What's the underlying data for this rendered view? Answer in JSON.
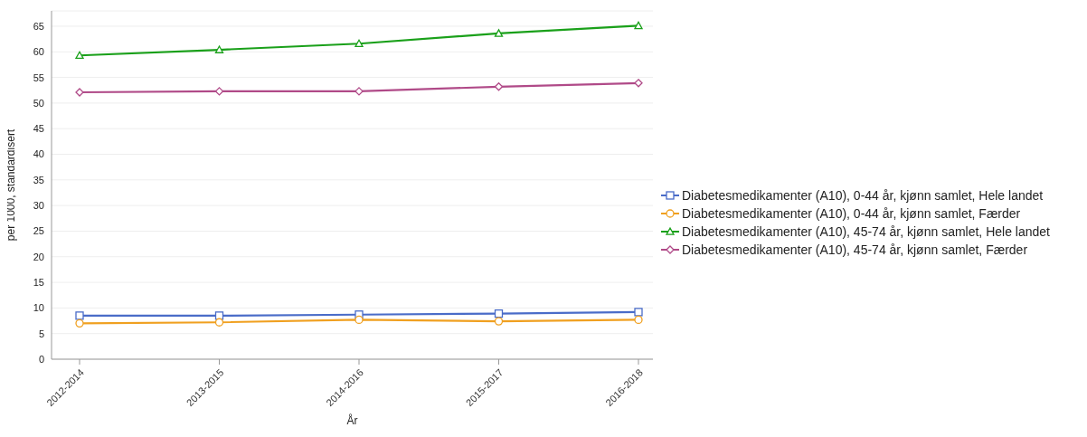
{
  "chart_data": {
    "type": "line",
    "xlabel": "År",
    "ylabel": "per 1000, standardisert",
    "categories": [
      "2012-2014",
      "2013-2015",
      "2014-2016",
      "2015-2017",
      "2016-2018"
    ],
    "ylim": [
      0,
      68
    ],
    "yticks": [
      0,
      5,
      10,
      15,
      20,
      25,
      30,
      35,
      40,
      45,
      50,
      55,
      60,
      65
    ],
    "grid": "y",
    "legend": "right",
    "series": [
      {
        "name": "Diabetesmedikamenter (A10), 0-44 år, kjønn samlet, Hele landet",
        "color": "#4a6cc8",
        "marker": "square",
        "values": [
          8.5,
          8.5,
          8.7,
          8.9,
          9.2
        ]
      },
      {
        "name": "Diabetesmedikamenter (A10), 0-44 år, kjønn samlet, Færder",
        "color": "#f0a020",
        "marker": "circle",
        "values": [
          7.0,
          7.2,
          7.7,
          7.4,
          7.7
        ]
      },
      {
        "name": "Diabetesmedikamenter (A10), 45-74 år, kjønn samlet, Hele landet",
        "color": "#1aa01a",
        "marker": "triangle",
        "values": [
          59.3,
          60.4,
          61.6,
          63.6,
          65.1
        ]
      },
      {
        "name": "Diabetesmedikamenter (A10), 45-74 år, kjønn samlet, Færder",
        "color": "#b04a88",
        "marker": "diamond",
        "values": [
          52.1,
          52.3,
          52.3,
          53.2,
          53.9
        ]
      }
    ]
  }
}
